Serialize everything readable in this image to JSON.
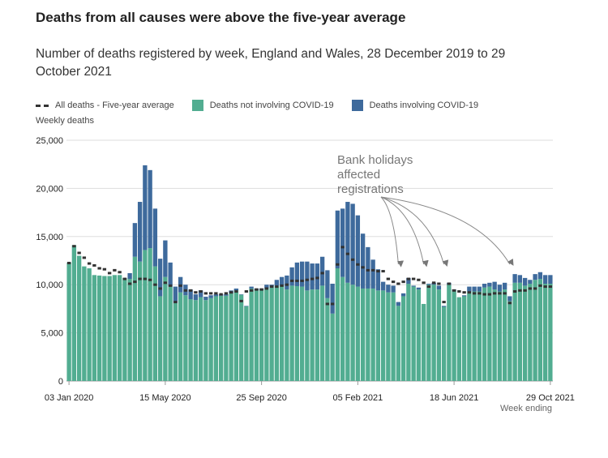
{
  "title": "Deaths from all causes were above the five-year average",
  "subtitle": "Number of deaths registered by week, England and Wales, 28 December 2019 to 29 October 2021",
  "colors": {
    "not_covid": "#52ad91",
    "covid": "#3e6a9c",
    "average": "#333333",
    "grid": "#dddddd"
  },
  "chart_data": {
    "type": "bar",
    "stacked": true,
    "ylabel": "Weekly deaths",
    "xlabel": "Week ending",
    "ylim": [
      0,
      25000
    ],
    "yticks": [
      "0",
      "5,000",
      "10,000",
      "15,000",
      "20,000",
      "25,000"
    ],
    "ytick_values": [
      0,
      5000,
      10000,
      15000,
      20000,
      25000
    ],
    "grid": true,
    "legend_position": "top-left",
    "x_tick_labels": [
      {
        "week": 0,
        "label": "03 Jan 2020"
      },
      {
        "week": 19,
        "label": "15 May 2020"
      },
      {
        "week": 38,
        "label": "25 Sep 2020"
      },
      {
        "week": 57,
        "label": "05 Feb 2021"
      },
      {
        "week": 76,
        "label": "18 Jun 2021"
      },
      {
        "week": 95,
        "label": "29 Oct 2021"
      }
    ],
    "series": [
      {
        "name": "Deaths not involving COVID-19",
        "values": [
          12300,
          14100,
          13000,
          11900,
          11700,
          11000,
          10950,
          10900,
          10900,
          11000,
          11000,
          10700,
          10600,
          12900,
          12400,
          13600,
          13800,
          11900,
          8800,
          10800,
          9800,
          8100,
          9200,
          8900,
          8500,
          8400,
          8700,
          8400,
          8600,
          8800,
          8850,
          8850,
          9100,
          9400,
          8950,
          7750,
          9600,
          9400,
          9500,
          9600,
          9800,
          9900,
          9900,
          9500,
          9900,
          9850,
          9800,
          9400,
          9500,
          9500,
          9900,
          8600,
          7000,
          11700,
          10800,
          10200,
          10000,
          9800,
          9600,
          9600,
          9600,
          9400,
          9400,
          9200,
          9200,
          7800,
          8800,
          10100,
          9800,
          9500,
          8000,
          10000,
          10000,
          9500,
          7700,
          10000,
          9400,
          8700,
          8800,
          9300,
          9300,
          9300,
          9700,
          9800,
          9500,
          9300,
          9500,
          8300,
          10200,
          10200,
          9900,
          10100,
          10500,
          10600,
          10100,
          10100
        ]
      },
      {
        "name": "Deaths involving COVID-19",
        "values": [
          0,
          0,
          0,
          0,
          0,
          0,
          0,
          0,
          0,
          0,
          0,
          0,
          600,
          3500,
          6200,
          8800,
          8100,
          6000,
          3900,
          3800,
          2500,
          1700,
          1600,
          1100,
          1000,
          600,
          700,
          350,
          300,
          200,
          150,
          150,
          300,
          200,
          50,
          50,
          200,
          200,
          100,
          400,
          200,
          600,
          900,
          1450,
          1900,
          2450,
          2600,
          3000,
          2700,
          2700,
          3000,
          2900,
          3100,
          6000,
          7100,
          8400,
          8400,
          7400,
          5700,
          4300,
          3000,
          2200,
          900,
          800,
          700,
          400,
          300,
          600,
          100,
          200,
          0,
          100,
          200,
          400,
          100,
          200,
          100,
          0,
          100,
          500,
          500,
          500,
          400,
          400,
          800,
          700,
          700,
          500,
          900,
          800,
          800,
          400,
          600,
          700,
          900,
          900
        ]
      },
      {
        "name": "All deaths - Five-year average",
        "type": "line-dashed",
        "values": [
          12250,
          14000,
          13300,
          12800,
          12200,
          12000,
          11700,
          11600,
          11200,
          11500,
          11300,
          10600,
          10100,
          10300,
          10600,
          10600,
          10500,
          10000,
          9600,
          10200,
          9900,
          8200,
          9900,
          9400,
          9400,
          9200,
          9300,
          9100,
          9100,
          9100,
          9000,
          9100,
          9200,
          9300,
          8300,
          9300,
          9400,
          9500,
          9500,
          9600,
          9800,
          9800,
          9900,
          10000,
          10400,
          10400,
          10400,
          10500,
          10600,
          10700,
          11200,
          8000,
          8000,
          12100,
          13900,
          13200,
          12600,
          12100,
          11800,
          11500,
          11500,
          11400,
          11400,
          10600,
          10300,
          10100,
          10300,
          10600,
          10600,
          10500,
          10200,
          9800,
          10200,
          10100,
          8200,
          10100,
          9400,
          9300,
          9200,
          9200,
          9100,
          9100,
          9000,
          9000,
          9100,
          9100,
          9100,
          8100,
          9300,
          9400,
          9400,
          9600,
          9600,
          9900,
          9800,
          9800
        ]
      }
    ],
    "annotation": {
      "lines": [
        "Bank holidays",
        "affected",
        "registrations"
      ],
      "weeks": [
        65,
        70,
        74,
        87
      ]
    }
  }
}
